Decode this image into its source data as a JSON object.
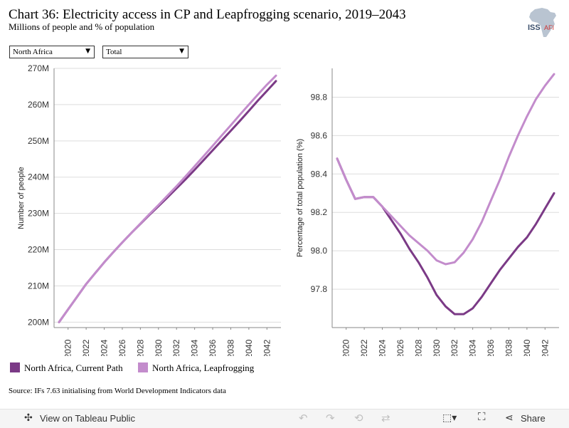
{
  "header": {
    "title": "Chart 36: Electricity access in CP and Leapfrogging scenario, 2019–2043",
    "subtitle": "Millions of people and % of population",
    "logo_text": "ISS",
    "logo_suffix": "AFI"
  },
  "filters": {
    "region": "North Africa",
    "measure": "Total"
  },
  "colors": {
    "current_path": "#7b3a86",
    "leapfrogging": "#c38ccc",
    "grid": "#dddddd",
    "axis": "#888888"
  },
  "legend": {
    "current_path": "North Africa, Current Path",
    "leapfrogging": "North Africa, Leapfrogging"
  },
  "source": "Source: IFs 7.63 initialising from World Development Indicators data",
  "toolbar": {
    "view_on_tableau": "View on Tableau Public",
    "share": "Share",
    "icons": [
      "tableau-icon",
      "undo-icon",
      "redo-icon",
      "revert-icon",
      "refresh-icon",
      "download-icon",
      "fullscreen-icon",
      "share-icon"
    ]
  },
  "chart_data": [
    {
      "type": "line",
      "ylabel": "Number of people",
      "xlabel": "",
      "ylim": [
        198.5,
        270
      ],
      "yticks": [
        200,
        210,
        220,
        230,
        240,
        250,
        260,
        270
      ],
      "ytick_labels": [
        "200M",
        "210M",
        "220M",
        "230M",
        "240M",
        "250M",
        "260M",
        "270M"
      ],
      "xticks": [
        "2020",
        "2022",
        "2024",
        "2026",
        "2028",
        "2030",
        "2032",
        "2034",
        "2036",
        "2038",
        "2040",
        "2042"
      ],
      "grid": true,
      "x": [
        2019,
        2020,
        2021,
        2022,
        2023,
        2024,
        2025,
        2026,
        2027,
        2028,
        2029,
        2030,
        2031,
        2032,
        2033,
        2034,
        2035,
        2036,
        2037,
        2038,
        2039,
        2040,
        2041,
        2042,
        2043
      ],
      "series": [
        {
          "name": "North Africa, Current Path",
          "values": [
            200.0,
            203.5,
            207.0,
            210.5,
            213.5,
            216.5,
            219.3,
            222.0,
            224.6,
            227.1,
            229.6,
            232.0,
            234.4,
            236.9,
            239.4,
            242.0,
            244.7,
            247.4,
            250.1,
            252.8,
            255.5,
            258.3,
            261.1,
            263.8,
            266.5
          ]
        },
        {
          "name": "North Africa, Leapfrogging",
          "values": [
            200.0,
            203.5,
            207.0,
            210.5,
            213.5,
            216.5,
            219.3,
            222.0,
            224.6,
            227.2,
            229.8,
            232.3,
            234.9,
            237.5,
            240.2,
            243.0,
            245.8,
            248.6,
            251.5,
            254.3,
            257.2,
            260.0,
            262.8,
            265.5,
            268.0
          ]
        }
      ]
    },
    {
      "type": "line",
      "ylabel": "Percentage of total population (%)",
      "xlabel": "",
      "ylim": [
        97.6,
        98.95
      ],
      "yticks": [
        97.8,
        98.0,
        98.2,
        98.4,
        98.6,
        98.8
      ],
      "ytick_labels": [
        "97.8",
        "98.0",
        "98.2",
        "98.4",
        "98.6",
        "98.8"
      ],
      "xticks": [
        "2020",
        "2022",
        "2024",
        "2026",
        "2028",
        "2030",
        "2032",
        "2034",
        "2036",
        "2038",
        "2040",
        "2042"
      ],
      "grid": true,
      "x": [
        2019,
        2020,
        2021,
        2022,
        2023,
        2024,
        2025,
        2026,
        2027,
        2028,
        2029,
        2030,
        2031,
        2032,
        2033,
        2034,
        2035,
        2036,
        2037,
        2038,
        2039,
        2040,
        2041,
        2042,
        2043
      ],
      "series": [
        {
          "name": "North Africa, Current Path",
          "values": [
            98.48,
            98.37,
            98.27,
            98.28,
            98.28,
            98.23,
            98.16,
            98.09,
            98.01,
            97.94,
            97.86,
            97.77,
            97.71,
            97.67,
            97.67,
            97.7,
            97.76,
            97.83,
            97.9,
            97.96,
            98.02,
            98.07,
            98.14,
            98.22,
            98.3
          ]
        },
        {
          "name": "North Africa, Leapfrogging",
          "values": [
            98.48,
            98.37,
            98.27,
            98.28,
            98.28,
            98.23,
            98.18,
            98.13,
            98.08,
            98.04,
            98.0,
            97.95,
            97.93,
            97.94,
            97.99,
            98.06,
            98.15,
            98.26,
            98.37,
            98.49,
            98.6,
            98.7,
            98.79,
            98.86,
            98.92
          ]
        }
      ]
    }
  ]
}
